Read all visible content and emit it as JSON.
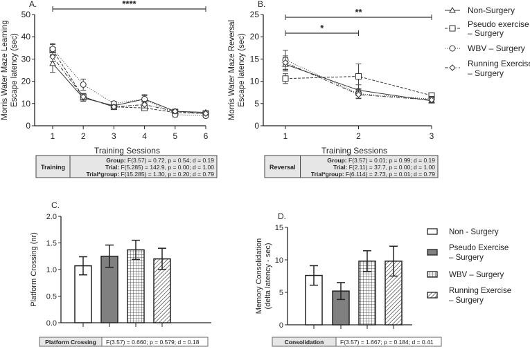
{
  "chart_data": [
    {
      "panel": "A.",
      "type": "line",
      "xlabel": "Training Sessions",
      "ylabel": [
        "Morris Water Maze Learning",
        "Escape latency (sec)"
      ],
      "x": [
        1,
        2,
        3,
        4,
        5,
        6
      ],
      "ylim": [
        0,
        50
      ],
      "yticks": [
        0,
        10,
        20,
        30,
        40,
        50
      ],
      "significance": [
        {
          "from": 1,
          "to": 6,
          "label": "****"
        }
      ],
      "series": [
        {
          "name": "Non-Surgery",
          "marker": "triangle",
          "dash": "",
          "values": [
            28,
            12.5,
            9,
            12,
            6.5,
            6
          ],
          "err": [
            4,
            1.5,
            1,
            1.5,
            1,
            0.8
          ]
        },
        {
          "name": "Pseudo exercise – Surgery",
          "marker": "square",
          "dash": "4,2",
          "values": [
            34,
            13,
            8.5,
            8,
            6,
            5.5
          ],
          "err": [
            2.5,
            1.5,
            1,
            1,
            1,
            0.8
          ]
        },
        {
          "name": "WBV – Surgery",
          "marker": "circle",
          "dash": "1,2",
          "values": [
            34.5,
            18.5,
            10,
            12,
            5,
            4.5
          ],
          "err": [
            2.5,
            2.5,
            1,
            2,
            1,
            0.8
          ]
        },
        {
          "name": "Running Exercise – Surgery",
          "marker": "diamond",
          "dash": "5,2,1,2",
          "values": [
            31,
            13,
            8.5,
            9.5,
            6.5,
            5.5
          ],
          "err": [
            2,
            1.5,
            1,
            1.5,
            1,
            0.8
          ]
        }
      ],
      "table": {
        "label": "Training",
        "rows": [
          [
            "Group:",
            "F(3.57)    = 0.72,   p = 0.54; d = 0.19"
          ],
          [
            "Trial:",
            "F(5.285)   = 142.9, p = 0.00; d = 1.00"
          ],
          [
            "Trial*group:",
            "F(15.285)  = 1.30,   p = 0.20; d = 0.79"
          ]
        ]
      }
    },
    {
      "panel": "B.",
      "type": "line",
      "xlabel": "Training Sessions",
      "ylabel": [
        "Morris Water Maze Reversal",
        "Escape latency (sec)"
      ],
      "x": [
        1,
        2,
        3
      ],
      "ylim": [
        0,
        25
      ],
      "yticks": [
        0,
        5,
        10,
        15,
        20,
        25
      ],
      "significance": [
        {
          "from": 1,
          "to": 3,
          "label": "**"
        },
        {
          "from": 1,
          "to": 2,
          "label": "*"
        }
      ],
      "series": [
        {
          "name": "Non-Surgery",
          "marker": "triangle",
          "dash": "",
          "values": [
            13.8,
            8,
            5.6
          ],
          "err": [
            1.5,
            1.2,
            0.5
          ]
        },
        {
          "name": "Pseudo exercise – Surgery",
          "marker": "square",
          "dash": "4,2",
          "values": [
            10.6,
            11.1,
            6.8
          ],
          "err": [
            1.1,
            2.8,
            0.6
          ]
        },
        {
          "name": "WBV – Surgery",
          "marker": "circle",
          "dash": "1,2",
          "values": [
            14.8,
            7.2,
            6
          ],
          "err": [
            2.2,
            1,
            0.6
          ]
        },
        {
          "name": "Running Exercise – Surgery",
          "marker": "diamond",
          "dash": "5,2,1,2",
          "values": [
            14.2,
            7,
            5.8
          ],
          "err": [
            1.5,
            0.9,
            0.5
          ]
        }
      ],
      "table": {
        "label": "Reversal",
        "rows": [
          [
            "Group:",
            "F(3.57)   = 0.01; p = 0.99; d = 0.19"
          ],
          [
            "Trial:",
            "F(2.11)   = 37.7, p = 0.00;  d = 1.00"
          ],
          [
            "Trial*group:",
            "F(6.114) = 2.73, p = 0.01; d = 0.79"
          ]
        ]
      }
    },
    {
      "panel": "C.",
      "type": "bar",
      "ylabel": [
        "Platform Crossing (nr)"
      ],
      "ylim": [
        0,
        2
      ],
      "yticks": [
        "0.0",
        "0.5",
        "1.0",
        "1.5",
        "2.0"
      ],
      "categories": [
        "Non - Surgery",
        "Pseudo Exercise – Surgery",
        "WBV – Surgery",
        "Running Exercise – Surgery"
      ],
      "values": [
        1.07,
        1.25,
        1.37,
        1.2
      ],
      "err": [
        0.17,
        0.21,
        0.18,
        0.2
      ],
      "table": {
        "label": "Platform Crossing",
        "text": "F(3.57) = 0.660; p = 0.579; d = 0.18"
      }
    },
    {
      "panel": "D.",
      "type": "bar",
      "ylabel": [
        "Memory Consolidation",
        "(delta latency - sec)"
      ],
      "ylim": [
        0,
        15
      ],
      "yticks": [
        "0",
        "5",
        "10",
        "15"
      ],
      "categories": [
        "Non - Surgery",
        "Pseudo Exercise – Surgery",
        "WBV – Surgery",
        "Running Exercise – Surgery"
      ],
      "values": [
        7.6,
        5.2,
        9.8,
        9.8
      ],
      "err": [
        1.5,
        1.3,
        1.6,
        2.3
      ],
      "table": {
        "label": "Consolidation",
        "text": "F(3.57) = 1.667; p = 0.184; d = 0.41"
      }
    }
  ],
  "legend_lines": [
    [
      "Non-Surgery"
    ],
    [
      "Pseudo exercise",
      "– Surgery"
    ],
    [
      "WBV – Surgery"
    ],
    [
      "Running Exercise",
      "– Surgery"
    ]
  ],
  "legend_bars": [
    [
      "Non - Surgery"
    ],
    [
      "Pseudo  Exercise",
      "– Surgery"
    ],
    [
      "WBV – Surgery"
    ],
    [
      "Running Exercise",
      "– Surgery"
    ]
  ],
  "colors": {
    "bar_gray": "#808080",
    "axis": "#222222",
    "table_bg": "#e6e6e6"
  }
}
